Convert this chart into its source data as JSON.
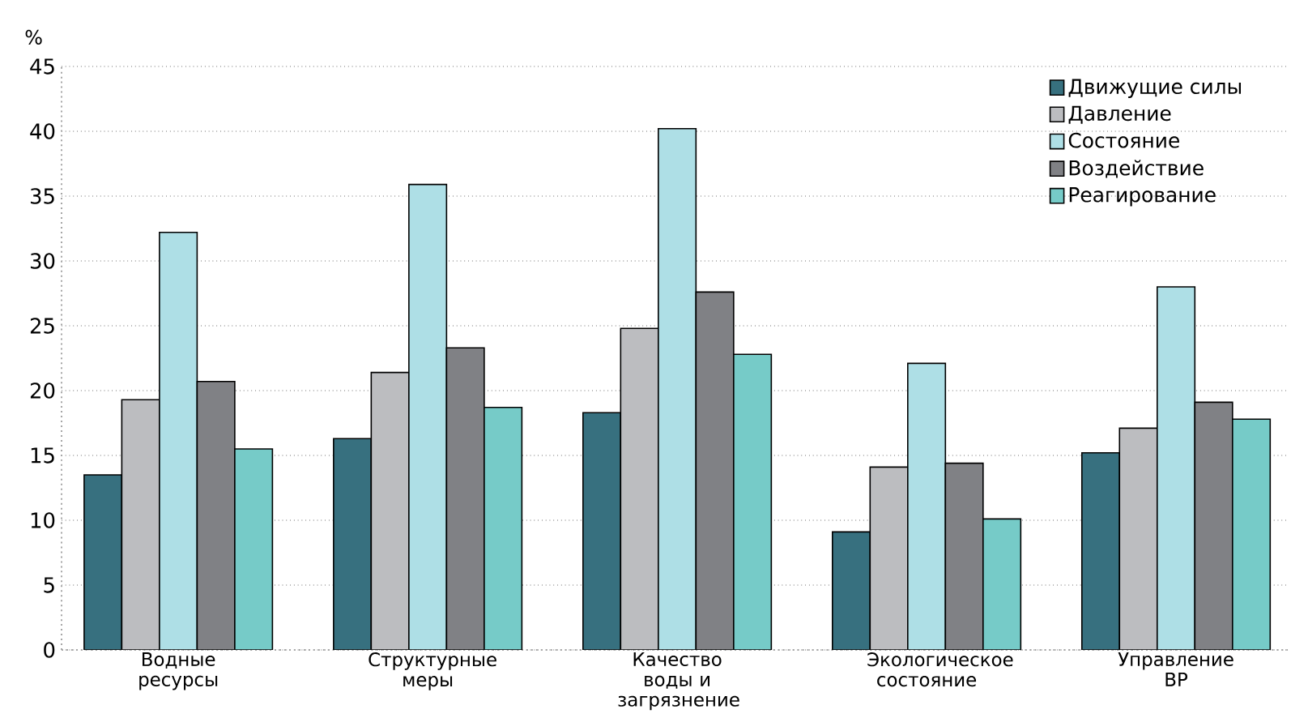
{
  "chart_data": {
    "type": "bar",
    "ylabel": "%",
    "categories": [
      "Водные ресурсы",
      "Структурные меры",
      "Качество воды и загрязнение",
      "Экологическое состояние",
      "Управление ВР"
    ],
    "series": [
      {
        "name": "Движущие силы",
        "color": "#37707f",
        "values": [
          13.5,
          16.3,
          18.3,
          9.1,
          15.2
        ]
      },
      {
        "name": "Давление",
        "color": "#bcbdc0",
        "values": [
          19.3,
          21.4,
          24.8,
          14.1,
          17.1
        ]
      },
      {
        "name": "Состояние",
        "color": "#aedfe6",
        "values": [
          32.2,
          35.9,
          40.2,
          22.1,
          28.0
        ]
      },
      {
        "name": "Воздействие",
        "color": "#808185",
        "values": [
          20.7,
          23.3,
          27.6,
          14.4,
          19.1
        ]
      },
      {
        "name": "Реагирование",
        "color": "#76cbc8",
        "values": [
          15.5,
          18.7,
          22.8,
          10.1,
          17.8
        ]
      }
    ],
    "ylim": [
      0,
      45
    ],
    "yticks": [
      0,
      5,
      10,
      15,
      20,
      25,
      30,
      35,
      40,
      45
    ],
    "grid": "y",
    "legend": "top right"
  }
}
